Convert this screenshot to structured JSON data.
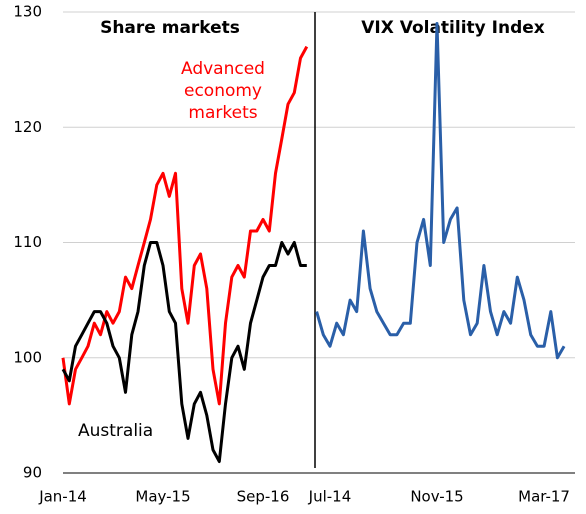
{
  "chart_data": [
    {
      "type": "line",
      "title": "Share markets",
      "categories": [
        "Jan-14",
        null,
        null,
        null,
        null,
        null,
        null,
        null,
        null,
        null,
        null,
        null,
        null,
        null,
        null,
        null,
        "May-15",
        null,
        null,
        null,
        null,
        null,
        null,
        null,
        null,
        null,
        null,
        null,
        null,
        null,
        null,
        null,
        "Sep-16",
        null,
        null,
        null,
        null,
        null,
        null,
        null
      ],
      "series": [
        {
          "name": "Advanced economy markets",
          "color": "#ff0000",
          "values": [
            100,
            96,
            99,
            100,
            101,
            103,
            102,
            104,
            103,
            104,
            107,
            106,
            108,
            110,
            112,
            115,
            116,
            114,
            116,
            106,
            103,
            108,
            109,
            106,
            99,
            96,
            103,
            107,
            108,
            107,
            111,
            111,
            112,
            111,
            116,
            119,
            122,
            123,
            126,
            127
          ]
        },
        {
          "name": "Australia",
          "color": "#000000",
          "values": [
            99,
            98,
            101,
            102,
            103,
            104,
            104,
            103,
            101,
            100,
            97,
            102,
            104,
            108,
            110,
            110,
            108,
            104,
            103,
            96,
            93,
            96,
            97,
            95,
            92,
            91,
            96,
            100,
            101,
            99,
            103,
            105,
            107,
            108,
            108,
            110,
            109,
            110,
            108,
            108
          ]
        }
      ],
      "ylim": [
        90,
        130
      ],
      "yticks": [
        90,
        100,
        110,
        120,
        130
      ],
      "grid": true
    },
    {
      "type": "line",
      "title": "VIX Volatility Index",
      "categories": [
        null,
        null,
        "Jul-14",
        null,
        null,
        null,
        null,
        null,
        null,
        null,
        null,
        null,
        null,
        null,
        null,
        null,
        null,
        null,
        "Nov-15",
        null,
        null,
        null,
        null,
        null,
        null,
        null,
        null,
        null,
        null,
        null,
        null,
        null,
        null,
        null,
        "Mar-17",
        null,
        null,
        null
      ],
      "series": [
        {
          "color": "#2a5fa8",
          "values": [
            104,
            102,
            101,
            103,
            102,
            105,
            104,
            111,
            106,
            104,
            103,
            102,
            102,
            103,
            103,
            110,
            112,
            108,
            129,
            110,
            112,
            113,
            105,
            102,
            103,
            108,
            104,
            102,
            104,
            103,
            107,
            105,
            102,
            101,
            101,
            104,
            100,
            101
          ]
        }
      ],
      "ylim": [
        90,
        130
      ]
    }
  ]
}
